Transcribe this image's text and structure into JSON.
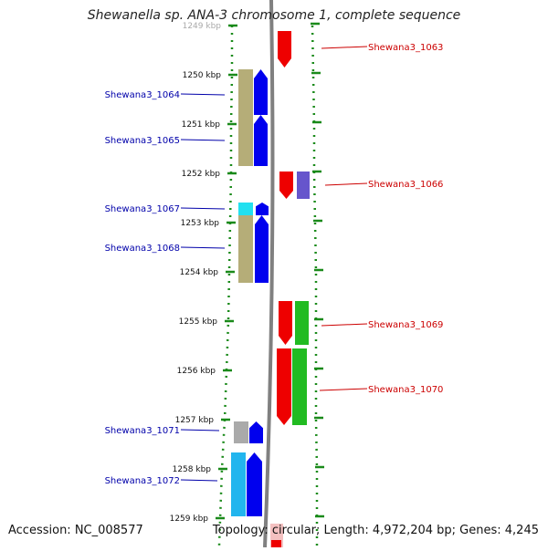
{
  "title": "Shewanella sp. ANA-3 chromosome 1, complete sequence",
  "accession": "Accession: NC_008577",
  "summary": "Topology: circular; Length: 4,972,204 bp; Genes: 4,245",
  "colors": {
    "ruler": "#1a8a1a",
    "backbone": "#808080",
    "left_label": "#0000aa",
    "right_label": "#cc0000"
  },
  "ruler_labels": [
    "1249 kbp",
    "1250 kbp",
    "1251 kbp",
    "1252 kbp",
    "1253 kbp",
    "1254 kbp",
    "1255 kbp",
    "1256 kbp",
    "1257 kbp",
    "1258 kbp",
    "1259 kbp"
  ],
  "left_genes": [
    {
      "label": "Shewana3_1064",
      "lane_color": "#b5ad78",
      "arrow_color": "#0000ee"
    },
    {
      "label": "Shewana3_1065",
      "lane_color": "#b5ad78",
      "arrow_color": "#0000ee"
    },
    {
      "label": "Shewana3_1067",
      "lane_color": "#22e0f0",
      "arrow_color": "#0000ee"
    },
    {
      "label": "Shewana3_1068",
      "lane_color": "#b5ad78",
      "arrow_color": "#0000ee"
    },
    {
      "label": "Shewana3_1071",
      "lane_color": "#aaaaaa",
      "arrow_color": "#0000ee"
    },
    {
      "label": "Shewana3_1072",
      "lane_color": "#22b5ee",
      "arrow_color": "#0000ee"
    }
  ],
  "right_genes": [
    {
      "label": "Shewana3_1063",
      "arrow_color": "#ee0000",
      "lane_color": ""
    },
    {
      "label": "Shewana3_1066",
      "arrow_color": "#ee0000",
      "lane_color": "#6655cc"
    },
    {
      "label": "Shewana3_1069",
      "arrow_color": "#ee0000",
      "lane_color": "#22bb22"
    },
    {
      "label": "Shewana3_1070",
      "arrow_color": "#ee0000",
      "lane_color": "#22bb22"
    }
  ]
}
